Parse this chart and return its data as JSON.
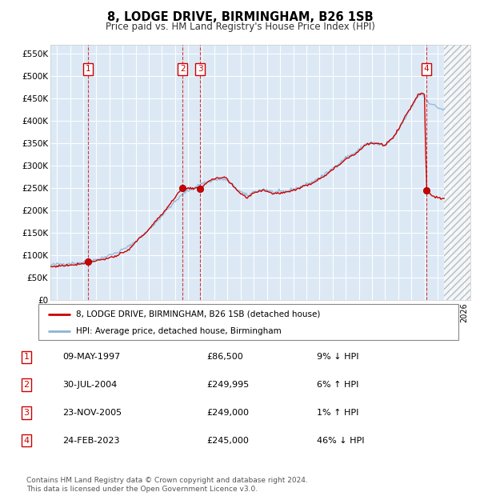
{
  "title": "8, LODGE DRIVE, BIRMINGHAM, B26 1SB",
  "subtitle": "Price paid vs. HM Land Registry's House Price Index (HPI)",
  "plot_bg_color": "#dce9f5",
  "ylim": [
    0,
    570000
  ],
  "yticks": [
    0,
    50000,
    100000,
    150000,
    200000,
    250000,
    300000,
    350000,
    400000,
    450000,
    500000,
    550000
  ],
  "ytick_labels": [
    "£0",
    "£50K",
    "£100K",
    "£150K",
    "£200K",
    "£250K",
    "£300K",
    "£350K",
    "£400K",
    "£450K",
    "£500K",
    "£550K"
  ],
  "xlim_start": 1994.5,
  "xlim_end": 2026.5,
  "hpi_color": "#8ab4d4",
  "price_color": "#cc0000",
  "marker_color": "#cc0000",
  "transactions": [
    {
      "num": 1,
      "date_x": 1997.36,
      "price": 86500,
      "label": "09-MAY-1997",
      "price_str": "£86,500",
      "hpi_str": "9% ↓ HPI"
    },
    {
      "num": 2,
      "date_x": 2004.58,
      "price": 249995,
      "label": "30-JUL-2004",
      "price_str": "£249,995",
      "hpi_str": "6% ↑ HPI"
    },
    {
      "num": 3,
      "date_x": 2005.9,
      "price": 249000,
      "label": "23-NOV-2005",
      "price_str": "£249,000",
      "hpi_str": "1% ↑ HPI"
    },
    {
      "num": 4,
      "date_x": 2023.15,
      "price": 245000,
      "label": "24-FEB-2023",
      "price_str": "£245,000",
      "hpi_str": "46% ↓ HPI"
    }
  ],
  "legend_line1": "8, LODGE DRIVE, BIRMINGHAM, B26 1SB (detached house)",
  "legend_line2": "HPI: Average price, detached house, Birmingham",
  "footer1": "Contains HM Land Registry data © Crown copyright and database right 2024.",
  "footer2": "This data is licensed under the Open Government Licence v3.0.",
  "hatch_start": 2024.5,
  "hatch_end": 2026.5
}
